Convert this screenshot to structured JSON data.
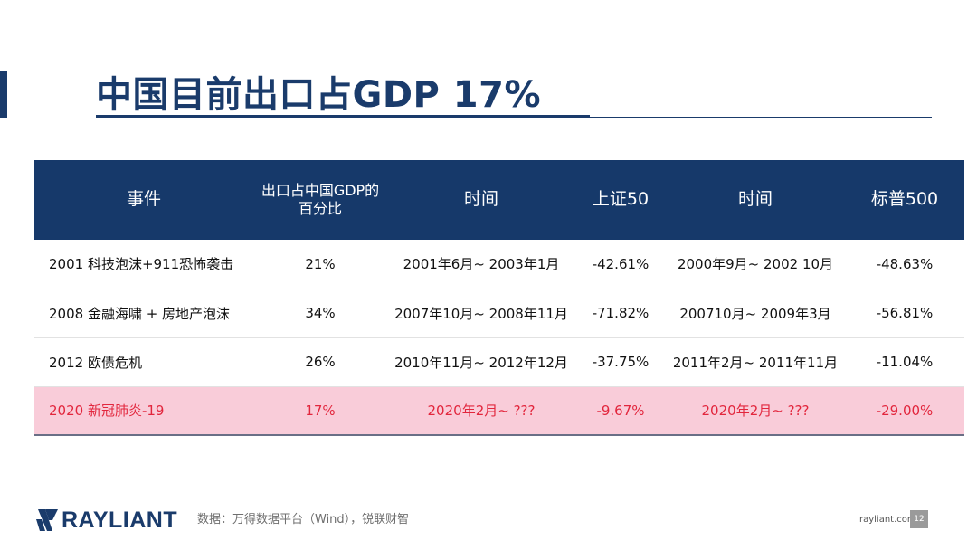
{
  "slide": {
    "title": "中国目前出口占GDP 17%",
    "page_number": "12",
    "source": "数据：万得数据平台（Wind），锐联财智",
    "site": "rayliant.com",
    "logo_text": "RAYLIANT"
  },
  "table": {
    "headers": [
      "事件",
      "出口占中国GDP的百分比",
      "时间",
      "上证50",
      "时间",
      "标普500"
    ],
    "rows": [
      [
        "2001 科技泡沫+911恐怖袭击",
        "21%",
        "2001年6月~ 2003年1月",
        "-42.61%",
        "2000年9月~ 2002 10月",
        "-48.63%"
      ],
      [
        "2008 金融海啸 + 房地产泡沫",
        "34%",
        "2007年10月~ 2008年11月",
        "-71.82%",
        "200710月~ 2009年3月",
        "-56.81%"
      ],
      [
        "2012 欧债危机",
        "26%",
        "2010年11月~ 2012年12月",
        "-37.75%",
        "2011年2月~ 2011年11月",
        "-11.04%"
      ],
      [
        "2020 新冠肺炎-19",
        "17%",
        "2020年2月~ ???",
        "-9.67%",
        "2020年2月~ ???",
        "-29.00%"
      ]
    ],
    "highlight_row_index": 3
  },
  "colors": {
    "brand_navy": "#1a3b6b",
    "header_bg": "#16396a",
    "highlight_bg": "#f9ccd9",
    "highlight_text": "#e2263d"
  }
}
